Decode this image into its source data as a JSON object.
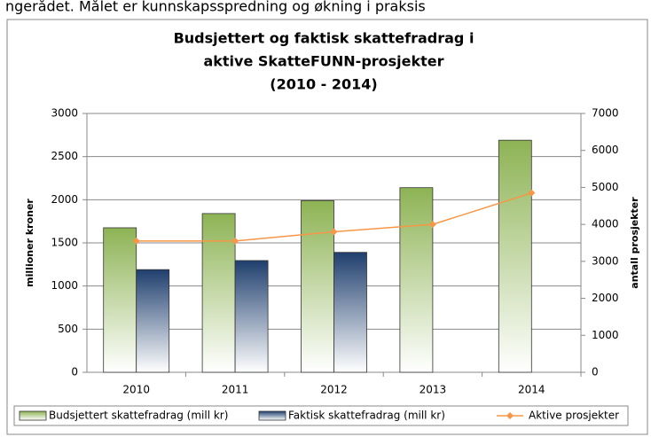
{
  "lead_text": "ngerådet. Målet er kunnskapsspredning og økning i praksis",
  "chart_data": {
    "type": "bar",
    "title": [
      "Budsjettert og faktisk skattefradrag i",
      "aktive SkatteFUNN-prosjekter",
      "(2010 - 2014)"
    ],
    "y_label": "millioner kroner",
    "y2_label": "antall prosjekter",
    "categories": [
      "2010",
      "2011",
      "2012",
      "2013",
      "2014"
    ],
    "series": [
      {
        "name": "Budsjettert skattefradrag (mill kr)",
        "color": "#8db354",
        "values": [
          1675,
          1840,
          1990,
          2140,
          2690
        ]
      },
      {
        "name": "Faktisk skattefradrag (mill kr)",
        "color": "#1f3f6e",
        "values": [
          1190,
          1295,
          1390,
          null,
          null
        ]
      },
      {
        "name": "Aktive prosjekter",
        "color": "#f79646",
        "type": "line",
        "axis": "y2",
        "values": [
          3550,
          3550,
          3800,
          4000,
          4850
        ]
      }
    ],
    "ylim": [
      0,
      3000
    ],
    "yticks": [
      0,
      500,
      1000,
      1500,
      2000,
      2500,
      3000
    ],
    "y2lim": [
      0,
      7000
    ],
    "y2ticks": [
      0,
      1000,
      2000,
      3000,
      4000,
      5000,
      6000,
      7000
    ],
    "grid": true,
    "legend": "bottom"
  }
}
